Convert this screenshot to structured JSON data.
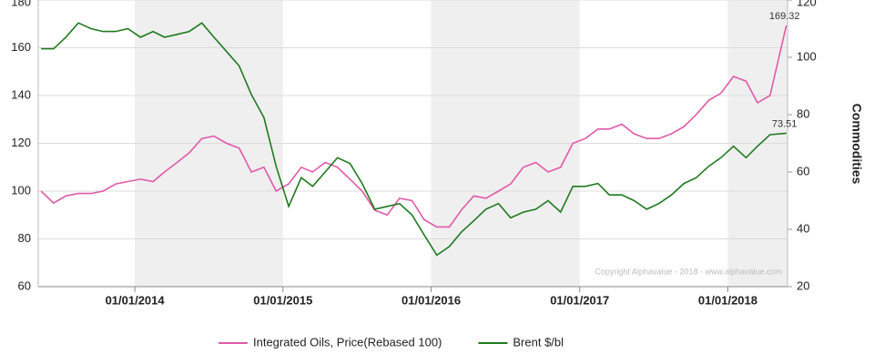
{
  "chart_data": {
    "type": "line",
    "y2_label": "Commodities",
    "credit": "Copyright Alphavalue - 2018 - www.alphavalue.com",
    "x": [
      "2013-05-15",
      "2013-06-15",
      "2013-07-15",
      "2013-08-15",
      "2013-09-15",
      "2013-10-15",
      "2013-11-15",
      "2013-12-15",
      "2014-01-15",
      "2014-02-15",
      "2014-03-15",
      "2014-04-15",
      "2014-05-15",
      "2014-06-15",
      "2014-07-15",
      "2014-08-15",
      "2014-09-15",
      "2014-10-15",
      "2014-11-15",
      "2014-12-15",
      "2015-01-15",
      "2015-02-15",
      "2015-03-15",
      "2015-04-15",
      "2015-05-15",
      "2015-06-15",
      "2015-07-15",
      "2015-08-15",
      "2015-09-15",
      "2015-10-15",
      "2015-11-15",
      "2015-12-15",
      "2016-01-15",
      "2016-02-15",
      "2016-03-15",
      "2016-04-15",
      "2016-05-15",
      "2016-06-15",
      "2016-07-15",
      "2016-08-15",
      "2016-09-15",
      "2016-10-15",
      "2016-11-15",
      "2016-12-15",
      "2017-01-15",
      "2017-02-15",
      "2017-03-15",
      "2017-04-15",
      "2017-05-15",
      "2017-06-15",
      "2017-07-15",
      "2017-08-15",
      "2017-09-15",
      "2017-10-15",
      "2017-11-15",
      "2017-12-15",
      "2018-01-15",
      "2018-02-15",
      "2018-03-15",
      "2018-04-15",
      "2018-05-25"
    ],
    "xlim": [
      "2013-05-08",
      "2018-05-28"
    ],
    "xticks": [
      {
        "value": "2014-01-01",
        "label": "01/01/2014"
      },
      {
        "value": "2015-01-01",
        "label": "01/01/2015"
      },
      {
        "value": "2016-01-01",
        "label": "01/01/2016"
      },
      {
        "value": "2017-01-01",
        "label": "01/01/2017"
      },
      {
        "value": "2018-01-01",
        "label": "01/01/2018"
      }
    ],
    "ylim": [
      60,
      180
    ],
    "yticks": [
      60,
      80,
      100,
      120,
      140,
      160,
      180
    ],
    "y2lim": [
      20,
      120
    ],
    "y2ticks": [
      20,
      40,
      60,
      80,
      100,
      120
    ],
    "grid": true,
    "year_shading": true,
    "legend": "bottom",
    "series": [
      {
        "name": "Integrated Oils, Price(Rebased 100)",
        "color": "#e05aa8",
        "label_last": true,
        "values": [
          100,
          95,
          98,
          99,
          99,
          100,
          103,
          104,
          105,
          104,
          108,
          112,
          116,
          122,
          123,
          120,
          118,
          108,
          110,
          100,
          103,
          110,
          108,
          112,
          110,
          105,
          100,
          92,
          90,
          97,
          96,
          88,
          85,
          85,
          92,
          98,
          97,
          100,
          103,
          110,
          112,
          108,
          110,
          120,
          122,
          126,
          126,
          128,
          124,
          122,
          122,
          124,
          127,
          132,
          138,
          141,
          148,
          146,
          137,
          140,
          169.32
        ]
      },
      {
        "name": "Brent $/bl",
        "color": "#1f7a1f",
        "axis": "y2",
        "label_last": true,
        "values": [
          103,
          103,
          107,
          112,
          110,
          109,
          109,
          110,
          107,
          109,
          107,
          108,
          109,
          112,
          107,
          102,
          97,
          87,
          79,
          62,
          48,
          58,
          55,
          60,
          65,
          63,
          56,
          47,
          48,
          49,
          45,
          38,
          31,
          34,
          39,
          43,
          47,
          49,
          44,
          46,
          47,
          50,
          46,
          55,
          55,
          56,
          52,
          52,
          50,
          47,
          49,
          52,
          56,
          58,
          62,
          65,
          69,
          65,
          69,
          73,
          73.51
        ]
      }
    ]
  }
}
